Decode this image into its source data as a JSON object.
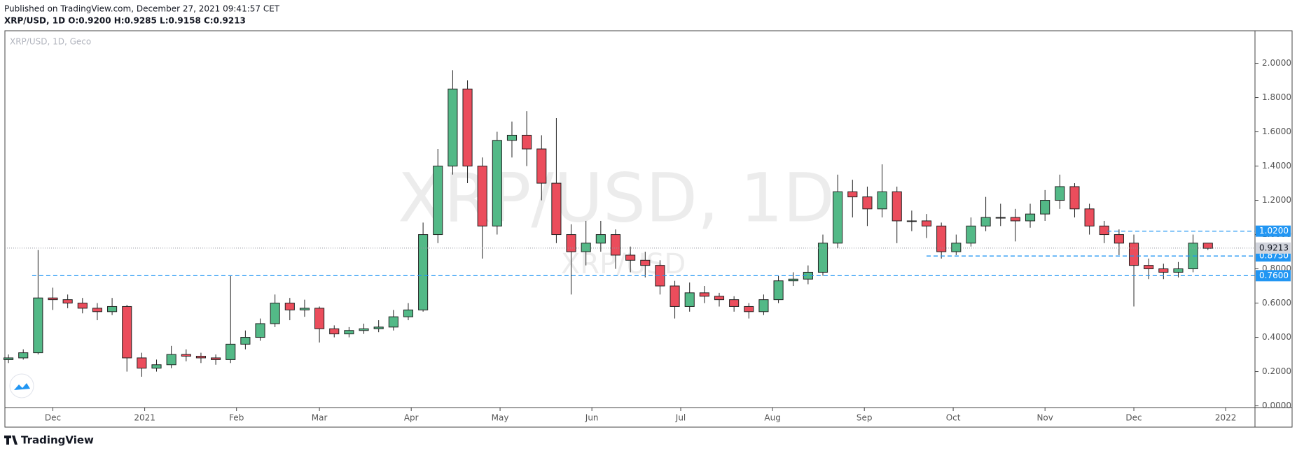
{
  "header": {
    "published": "Published on TradingView.com, December 27, 2021 09:41:57 CET",
    "ohlc": "XRP/USD, 1D  O:0.9200 H:0.9285 L:0.9158 C:0.9213"
  },
  "footer": "TradingView",
  "chart_data": {
    "type": "candlestick",
    "symbol": "XRP/USD, 1D, Geco",
    "watermark": "XRP/USD, 1D",
    "watermark_small": "XRP/USD",
    "up_color": "#53b987",
    "down_color": "#eb4d5c",
    "x": [
      -15,
      -10,
      -5,
      0,
      5,
      10,
      15,
      20,
      25,
      30,
      35,
      40,
      45,
      50,
      55,
      60,
      65,
      70,
      75,
      80,
      85,
      90,
      95,
      100,
      105,
      110,
      115,
      120,
      125,
      130,
      135,
      140,
      145,
      150,
      155,
      160,
      165,
      170,
      175,
      180,
      185,
      190,
      195,
      200,
      205,
      210,
      215,
      220,
      225,
      230,
      235,
      240,
      245,
      250,
      255,
      260,
      265,
      270,
      275,
      280,
      285,
      290,
      295,
      300,
      305,
      310,
      315,
      320,
      325,
      330,
      335,
      340,
      345,
      350,
      355,
      360,
      365,
      370,
      375,
      380,
      385,
      390
    ],
    "open": [
      0.27,
      0.28,
      0.31,
      0.63,
      0.62,
      0.6,
      0.57,
      0.55,
      0.58,
      0.28,
      0.22,
      0.24,
      0.3,
      0.29,
      0.28,
      0.27,
      0.36,
      0.4,
      0.48,
      0.6,
      0.56,
      0.57,
      0.45,
      0.42,
      0.44,
      0.45,
      0.46,
      0.52,
      0.56,
      1.0,
      1.4,
      1.85,
      1.4,
      1.05,
      1.55,
      1.58,
      1.5,
      1.3,
      1.0,
      0.9,
      0.95,
      1.0,
      0.88,
      0.85,
      0.82,
      0.7,
      0.58,
      0.66,
      0.64,
      0.62,
      0.58,
      0.55,
      0.62,
      0.73,
      0.74,
      0.78,
      0.95,
      1.25,
      1.22,
      1.15,
      1.25,
      1.08,
      1.08,
      1.05,
      0.9,
      0.95,
      1.05,
      1.1,
      1.1,
      1.08,
      1.12,
      1.2,
      1.28,
      1.15,
      1.05,
      1.0,
      0.95,
      0.82,
      0.8,
      0.78,
      0.8,
      0.95
    ],
    "high": [
      0.3,
      0.33,
      0.91,
      0.69,
      0.65,
      0.63,
      0.6,
      0.63,
      0.59,
      0.31,
      0.27,
      0.35,
      0.33,
      0.31,
      0.3,
      0.76,
      0.44,
      0.51,
      0.65,
      0.63,
      0.62,
      0.58,
      0.47,
      0.46,
      0.48,
      0.5,
      0.56,
      0.6,
      1.07,
      1.5,
      1.96,
      1.9,
      1.45,
      1.6,
      1.66,
      1.72,
      1.58,
      1.68,
      1.06,
      1.08,
      1.08,
      1.03,
      0.93,
      0.9,
      0.85,
      0.73,
      0.72,
      0.7,
      0.66,
      0.64,
      0.6,
      0.65,
      0.76,
      0.78,
      0.82,
      1.0,
      1.35,
      1.32,
      1.28,
      1.41,
      1.28,
      1.14,
      1.12,
      1.07,
      1.0,
      1.1,
      1.22,
      1.18,
      1.15,
      1.18,
      1.26,
      1.35,
      1.3,
      1.18,
      1.08,
      1.03,
      1.0,
      0.86,
      0.83,
      0.84,
      1.0,
      0.93
    ],
    "low": [
      0.25,
      0.27,
      0.3,
      0.56,
      0.57,
      0.54,
      0.5,
      0.53,
      0.2,
      0.17,
      0.2,
      0.22,
      0.26,
      0.25,
      0.24,
      0.25,
      0.33,
      0.38,
      0.46,
      0.5,
      0.52,
      0.37,
      0.4,
      0.4,
      0.42,
      0.43,
      0.44,
      0.5,
      0.55,
      0.95,
      1.35,
      1.3,
      0.86,
      1.0,
      1.45,
      1.4,
      1.2,
      0.95,
      0.65,
      0.82,
      0.9,
      0.8,
      0.78,
      0.75,
      0.65,
      0.51,
      0.55,
      0.6,
      0.58,
      0.55,
      0.51,
      0.53,
      0.6,
      0.7,
      0.71,
      0.76,
      0.92,
      1.1,
      1.05,
      1.1,
      0.95,
      1.02,
      0.98,
      0.86,
      0.88,
      0.93,
      1.02,
      1.05,
      0.96,
      1.04,
      1.08,
      1.15,
      1.1,
      1.0,
      0.95,
      0.88,
      0.58,
      0.74,
      0.74,
      0.75,
      0.78,
      0.91
    ],
    "close": [
      0.28,
      0.31,
      0.63,
      0.62,
      0.6,
      0.57,
      0.55,
      0.58,
      0.28,
      0.22,
      0.24,
      0.3,
      0.29,
      0.28,
      0.27,
      0.36,
      0.4,
      0.48,
      0.6,
      0.56,
      0.57,
      0.45,
      0.42,
      0.44,
      0.45,
      0.46,
      0.52,
      0.56,
      1.0,
      1.4,
      1.85,
      1.4,
      1.05,
      1.55,
      1.58,
      1.5,
      1.3,
      1.0,
      0.9,
      0.95,
      1.0,
      0.88,
      0.85,
      0.82,
      0.7,
      0.58,
      0.66,
      0.64,
      0.62,
      0.58,
      0.55,
      0.62,
      0.73,
      0.74,
      0.78,
      0.95,
      1.25,
      1.22,
      1.15,
      1.25,
      1.08,
      1.08,
      1.05,
      0.9,
      0.95,
      1.05,
      1.1,
      1.1,
      1.08,
      1.12,
      1.2,
      1.28,
      1.15,
      1.05,
      1.0,
      0.95,
      0.82,
      0.8,
      0.78,
      0.8,
      0.95,
      0.92
    ],
    "xlim": [
      -16.2,
      405.9
    ],
    "xticks": [
      {
        "value": 0,
        "label": "Dec"
      },
      {
        "value": 31,
        "label": "2021"
      },
      {
        "value": 62,
        "label": "Feb"
      },
      {
        "value": 90,
        "label": "Mar"
      },
      {
        "value": 121,
        "label": "Apr"
      },
      {
        "value": 151,
        "label": "May"
      },
      {
        "value": 182,
        "label": "Jun"
      },
      {
        "value": 212,
        "label": "Jul"
      },
      {
        "value": 243,
        "label": "Aug"
      },
      {
        "value": 274,
        "label": "Sep"
      },
      {
        "value": 304,
        "label": "Oct"
      },
      {
        "value": 335,
        "label": "Nov"
      },
      {
        "value": 365,
        "label": "Dec"
      },
      {
        "value": 396,
        "label": "2022"
      }
    ],
    "ylim": [
      -0.01,
      2.19
    ],
    "yticks": [
      {
        "value": 0,
        "label": "0.0000"
      },
      {
        "value": 0.2,
        "label": "0.2000"
      },
      {
        "value": 0.4,
        "label": "0.4000"
      },
      {
        "value": 0.6,
        "label": "0.6000"
      },
      {
        "value": 0.8,
        "label": "0.8000"
      },
      {
        "value": 1.0,
        "label": "1.0000"
      },
      {
        "value": 1.2,
        "label": "1.2000"
      },
      {
        "value": 1.4,
        "label": "1.4000"
      },
      {
        "value": 1.6,
        "label": "1.6000"
      },
      {
        "value": 1.8,
        "label": "1.8000"
      },
      {
        "value": 2.0,
        "label": "2.0000"
      }
    ],
    "horizontal_lines": [
      {
        "value": 1.02,
        "label": "1.0200",
        "from_x": 356
      },
      {
        "value": 0.875,
        "label": "0.8750",
        "from_x": 295
      },
      {
        "value": 0.76,
        "label": "0.7600",
        "from_x": -7
      }
    ],
    "line_color": "#2196f3",
    "last_price": {
      "value": 0.9213,
      "label": "0.9213"
    }
  }
}
